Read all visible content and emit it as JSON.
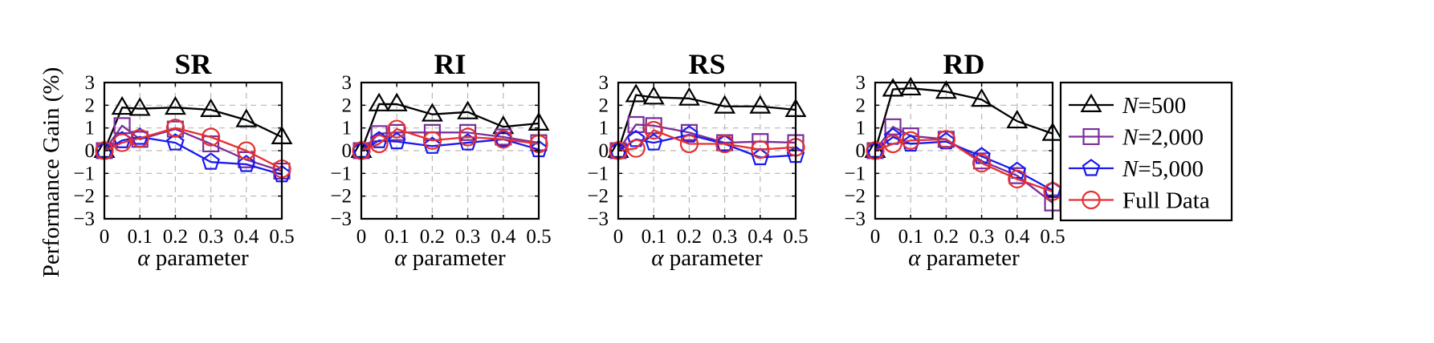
{
  "figure": {
    "ylabel": "Performance Gain (%)",
    "xlabel_symbol": "α",
    "xlabel_text": " parameter"
  },
  "series_styles": [
    {
      "name": "N=500",
      "color": "#000000",
      "marker": "triangle"
    },
    {
      "name": "N=2,000",
      "color": "#7b2e9a",
      "marker": "square"
    },
    {
      "name": "N=5,000",
      "color": "#1a1aee",
      "marker": "pentagon"
    },
    {
      "name": "Full Data",
      "color": "#e53030",
      "marker": "circle"
    }
  ],
  "legend": {
    "placement": "right",
    "entries": [
      {
        "prefix": "N",
        "suffix": "=500"
      },
      {
        "prefix": "N",
        "suffix": "=2,000"
      },
      {
        "prefix": "N",
        "suffix": "=5,000"
      },
      {
        "prefix": "",
        "suffix": "Full Data"
      }
    ]
  },
  "chart_data": [
    {
      "type": "line",
      "title": "SR",
      "x": [
        0,
        0.05,
        0.1,
        0.2,
        0.3,
        0.4,
        0.5
      ],
      "xticks": [
        "0",
        "0.1",
        "0.2",
        "0.3",
        "0.4",
        "0.5"
      ],
      "xtick_values": [
        0,
        0.1,
        0.2,
        0.3,
        0.4,
        0.5
      ],
      "yticks": [
        "3",
        "2",
        "1",
        "0",
        "−1",
        "−2",
        "−3"
      ],
      "ytick_values": [
        3,
        2,
        1,
        0,
        -1,
        -2,
        -3
      ],
      "xlim": [
        0,
        0.5
      ],
      "ylim": [
        -3,
        3
      ],
      "grid": true,
      "series": [
        {
          "name": "N=500",
          "values": [
            0,
            1.9,
            1.85,
            1.9,
            1.8,
            1.35,
            0.6
          ]
        },
        {
          "name": "N=2,000",
          "values": [
            0,
            1.1,
            0.5,
            0.95,
            0.3,
            -0.4,
            -0.9
          ]
        },
        {
          "name": "N=5,000",
          "values": [
            0,
            0.45,
            0.6,
            0.35,
            -0.5,
            -0.6,
            -1.05
          ]
        },
        {
          "name": "Full Data",
          "values": [
            0,
            0.35,
            0.55,
            1.0,
            0.6,
            0.0,
            -0.8
          ]
        }
      ]
    },
    {
      "type": "line",
      "title": "RI",
      "x": [
        0,
        0.05,
        0.1,
        0.2,
        0.3,
        0.4,
        0.5
      ],
      "xticks": [
        "0",
        "0.1",
        "0.2",
        "0.3",
        "0.4",
        "0.5"
      ],
      "xtick_values": [
        0,
        0.1,
        0.2,
        0.3,
        0.4,
        0.5
      ],
      "yticks": [
        "3",
        "2",
        "1",
        "0",
        "−1",
        "−2",
        "−3"
      ],
      "ytick_values": [
        3,
        2,
        1,
        0,
        -1,
        -2,
        -3
      ],
      "xlim": [
        0,
        0.5
      ],
      "ylim": [
        -3,
        3
      ],
      "grid": true,
      "series": [
        {
          "name": "N=500",
          "values": [
            0,
            2.05,
            2.05,
            1.6,
            1.7,
            1.05,
            1.2
          ]
        },
        {
          "name": "N=2,000",
          "values": [
            0,
            0.75,
            0.8,
            0.8,
            0.8,
            0.6,
            0.35
          ]
        },
        {
          "name": "N=5,000",
          "values": [
            0,
            0.45,
            0.4,
            0.2,
            0.35,
            0.5,
            0.05
          ]
        },
        {
          "name": "Full Data",
          "values": [
            0,
            0.3,
            0.95,
            0.45,
            0.6,
            0.5,
            0.3
          ]
        }
      ]
    },
    {
      "type": "line",
      "title": "RS",
      "x": [
        0,
        0.05,
        0.1,
        0.2,
        0.3,
        0.4,
        0.5
      ],
      "xticks": [
        "0",
        "0.1",
        "0.2",
        "0.3",
        "0.4",
        "0.5"
      ],
      "xtick_values": [
        0,
        0.1,
        0.2,
        0.3,
        0.4,
        0.5
      ],
      "yticks": [
        "3",
        "2",
        "1",
        "0",
        "−1",
        "−2",
        "−3"
      ],
      "ytick_values": [
        3,
        2,
        1,
        0,
        -1,
        -2,
        -3
      ],
      "xlim": [
        0,
        0.5
      ],
      "ylim": [
        -3,
        3
      ],
      "grid": true,
      "series": [
        {
          "name": "N=500",
          "values": [
            0,
            2.45,
            2.35,
            2.3,
            1.95,
            1.95,
            1.8
          ]
        },
        {
          "name": "N=2,000",
          "values": [
            0,
            1.15,
            1.1,
            0.8,
            0.35,
            0.4,
            0.35
          ]
        },
        {
          "name": "N=5,000",
          "values": [
            0,
            0.5,
            0.35,
            0.7,
            0.3,
            -0.3,
            -0.2
          ]
        },
        {
          "name": "Full Data",
          "values": [
            0,
            0.1,
            0.9,
            0.3,
            0.3,
            0.05,
            0.15
          ]
        }
      ]
    },
    {
      "type": "line",
      "title": "RD",
      "x": [
        0,
        0.05,
        0.1,
        0.2,
        0.3,
        0.4,
        0.5
      ],
      "xticks": [
        "0",
        "0.1",
        "0.2",
        "0.3",
        "0.4",
        "0.5"
      ],
      "xtick_values": [
        0,
        0.1,
        0.2,
        0.3,
        0.4,
        0.5
      ],
      "yticks": [
        "3",
        "2",
        "1",
        "0",
        "−1",
        "−2",
        "−3"
      ],
      "ytick_values": [
        3,
        2,
        1,
        0,
        -1,
        -2,
        -3
      ],
      "xlim": [
        0,
        0.5
      ],
      "ylim": [
        -3,
        3
      ],
      "grid": true,
      "series": [
        {
          "name": "N=500",
          "values": [
            0,
            2.7,
            2.75,
            2.6,
            2.25,
            1.3,
            0.75
          ]
        },
        {
          "name": "N=2,000",
          "values": [
            0,
            1.05,
            0.65,
            0.5,
            -0.45,
            -1.1,
            -2.3
          ]
        },
        {
          "name": "N=5,000",
          "values": [
            0,
            0.6,
            0.3,
            0.4,
            -0.25,
            -0.9,
            -1.75
          ]
        },
        {
          "name": "Full Data",
          "values": [
            0,
            0.3,
            0.45,
            0.5,
            -0.55,
            -1.25,
            -1.8
          ]
        }
      ]
    }
  ]
}
